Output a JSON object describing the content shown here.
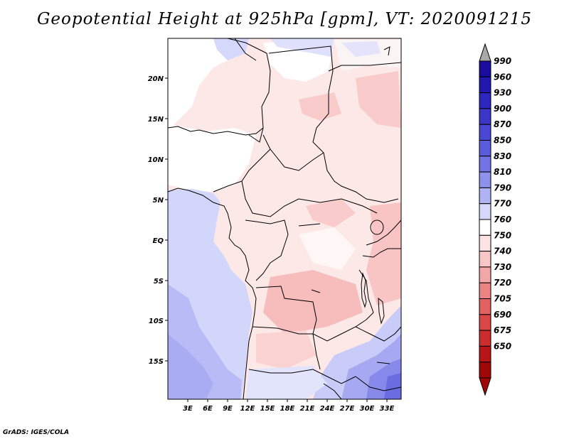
{
  "title": "Geopotential Height at 925hPa [gpm], VT: 2020091215",
  "credit": "GrADS: IGES/COLA",
  "lat_labels": [
    "20N",
    "15N",
    "10N",
    "5N",
    "EQ",
    "5S",
    "10S",
    "15S"
  ],
  "lon_labels": [
    "3E",
    "6E",
    "9E",
    "12E",
    "15E",
    "18E",
    "21E",
    "24E",
    "27E",
    "30E",
    "33E"
  ],
  "colorbar": {
    "labels": [
      "990",
      "960",
      "930",
      "900",
      "870",
      "850",
      "830",
      "810",
      "790",
      "770",
      "760",
      "750",
      "740",
      "730",
      "720",
      "705",
      "690",
      "675",
      "650"
    ],
    "colors": [
      "#1a0c9e",
      "#2218b0",
      "#2d26be",
      "#3a36c8",
      "#4a48d2",
      "#5b5cdc",
      "#7274e4",
      "#8f92ec",
      "#b0b3f3",
      "#d6d8fb",
      "#ffffff",
      "#fde2e2",
      "#f9c6c6",
      "#f3a6a6",
      "#ec8484",
      "#e26262",
      "#d84646",
      "#cc2c2c",
      "#b81616",
      "#a00808"
    ],
    "top_triangle_color": "#a9a9a9",
    "bottom_triangle_color": "#a00808"
  }
}
